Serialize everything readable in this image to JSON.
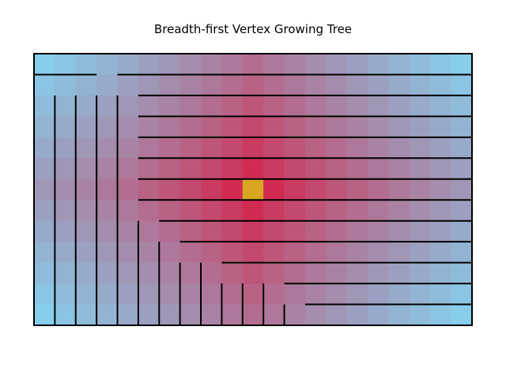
{
  "title": "Breadth-first Vertex Growing Tree",
  "grid": {
    "cols": 21,
    "rows": 13
  },
  "root": {
    "col": 10,
    "row": 6
  },
  "colors": {
    "near": "#dc143c",
    "far": "#87ceeb",
    "root": "#daa520",
    "wall": "#000000"
  }
}
